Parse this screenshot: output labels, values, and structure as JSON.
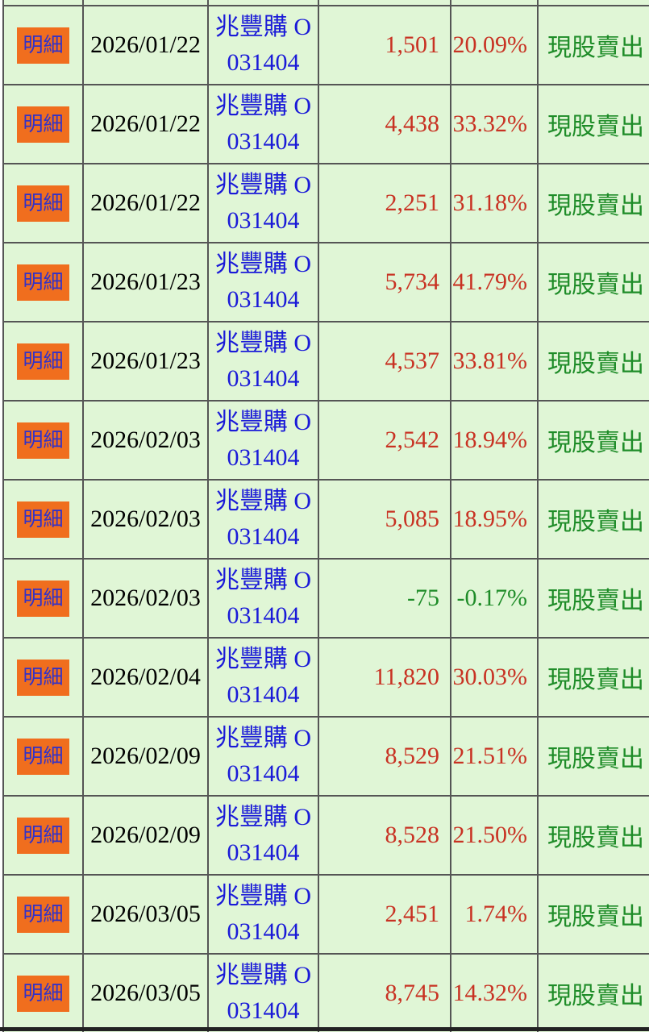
{
  "table": {
    "description_labels": {
      "detail_button": "明細",
      "stock_name_display": "兆豐購 O",
      "stock_code": "031404",
      "action": "現股賣出"
    },
    "colors": {
      "cell_background": "#e0f6d6",
      "grid_border": "#555555",
      "detail_button_background": "#f06e1e",
      "detail_button_text": "#3232c8",
      "stock_link_blue": "#1a1ad8",
      "positive_value_red": "#c83223",
      "negative_value_green": "#1e8c28",
      "action_text_green": "#1e8c28",
      "date_text": "#000000",
      "bottom_bar": "#222222"
    },
    "rows": [
      {
        "button": "明細",
        "date": "2026/01/22",
        "stock_name": "兆豐購 O",
        "stock_code": "031404",
        "amount": "1,501",
        "percent": "20.09%",
        "action": "現股賣出",
        "negative": false
      },
      {
        "button": "明細",
        "date": "2026/01/22",
        "stock_name": "兆豐購 O",
        "stock_code": "031404",
        "amount": "4,438",
        "percent": "33.32%",
        "action": "現股賣出",
        "negative": false
      },
      {
        "button": "明細",
        "date": "2026/01/22",
        "stock_name": "兆豐購 O",
        "stock_code": "031404",
        "amount": "2,251",
        "percent": "31.18%",
        "action": "現股賣出",
        "negative": false
      },
      {
        "button": "明細",
        "date": "2026/01/23",
        "stock_name": "兆豐購 O",
        "stock_code": "031404",
        "amount": "5,734",
        "percent": "41.79%",
        "action": "現股賣出",
        "negative": false
      },
      {
        "button": "明細",
        "date": "2026/01/23",
        "stock_name": "兆豐購 O",
        "stock_code": "031404",
        "amount": "4,537",
        "percent": "33.81%",
        "action": "現股賣出",
        "negative": false
      },
      {
        "button": "明細",
        "date": "2026/02/03",
        "stock_name": "兆豐購 O",
        "stock_code": "031404",
        "amount": "2,542",
        "percent": "18.94%",
        "action": "現股賣出",
        "negative": false
      },
      {
        "button": "明細",
        "date": "2026/02/03",
        "stock_name": "兆豐購 O",
        "stock_code": "031404",
        "amount": "5,085",
        "percent": "18.95%",
        "action": "現股賣出",
        "negative": false
      },
      {
        "button": "明細",
        "date": "2026/02/03",
        "stock_name": "兆豐購 O",
        "stock_code": "031404",
        "amount": "-75",
        "percent": "-0.17%",
        "action": "現股賣出",
        "negative": true
      },
      {
        "button": "明細",
        "date": "2026/02/04",
        "stock_name": "兆豐購 O",
        "stock_code": "031404",
        "amount": "11,820",
        "percent": "30.03%",
        "action": "現股賣出",
        "negative": false
      },
      {
        "button": "明細",
        "date": "2026/02/09",
        "stock_name": "兆豐購 O",
        "stock_code": "031404",
        "amount": "8,529",
        "percent": "21.51%",
        "action": "現股賣出",
        "negative": false
      },
      {
        "button": "明細",
        "date": "2026/02/09",
        "stock_name": "兆豐購 O",
        "stock_code": "031404",
        "amount": "8,528",
        "percent": "21.50%",
        "action": "現股賣出",
        "negative": false
      },
      {
        "button": "明細",
        "date": "2026/03/05",
        "stock_name": "兆豐購 O",
        "stock_code": "031404",
        "amount": "2,451",
        "percent": "1.74%",
        "action": "現股賣出",
        "negative": false
      },
      {
        "button": "明細",
        "date": "2026/03/05",
        "stock_name": "兆豐購 O",
        "stock_code": "031404",
        "amount": "8,745",
        "percent": "14.32%",
        "action": "現股賣出",
        "negative": false
      }
    ]
  }
}
